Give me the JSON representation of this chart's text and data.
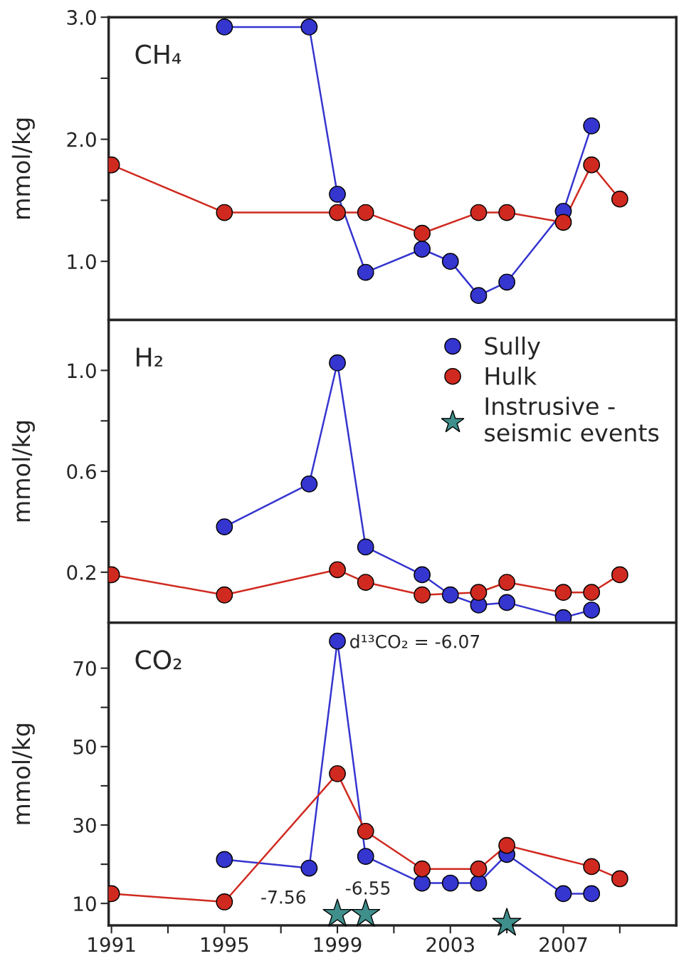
{
  "chart_data": [
    {
      "type": "line",
      "title": "CH₄",
      "ylabel": "mmol/kg",
      "xlim": [
        1990.9,
        2011
      ],
      "ylim": [
        0.52,
        3.0
      ],
      "yticks": [
        {
          "value": 1.0,
          "label": "1.0"
        },
        {
          "value": 1.5,
          "label": null
        },
        {
          "value": 2.0,
          "label": "2.0"
        },
        {
          "value": 2.5,
          "label": null
        },
        {
          "value": 3.0,
          "label": "3.0"
        }
      ],
      "tick_labels": "y",
      "grid": false,
      "marker": "circle",
      "line_style": "solid",
      "series": [
        {
          "color": "#3535d0",
          "x": [
            1995,
            1998,
            1999,
            2000,
            2002,
            2003,
            2004,
            2005,
            2007,
            2008
          ],
          "values": [
            2.92,
            2.92,
            1.55,
            0.91,
            1.1,
            1.0,
            0.72,
            0.83,
            1.41,
            2.11
          ]
        },
        {
          "color": "#d02a20",
          "x": [
            1991,
            1995,
            1999,
            2000,
            2002,
            2004,
            2005,
            2007,
            2008,
            2009
          ],
          "values": [
            1.79,
            1.4,
            1.4,
            1.4,
            1.23,
            1.4,
            1.4,
            1.32,
            1.79,
            1.51
          ]
        }
      ]
    },
    {
      "type": "line",
      "title": "H₂",
      "ylabel": "mmol/kg",
      "xlim": [
        1990.9,
        2011
      ],
      "ylim": [
        0,
        1.2
      ],
      "yticks": [
        {
          "value": 0.2,
          "label": "0.2"
        },
        {
          "value": 0.4,
          "label": null
        },
        {
          "value": 0.6,
          "label": "0.6"
        },
        {
          "value": 0.8,
          "label": null
        },
        {
          "value": 1.0,
          "label": "1.0"
        }
      ],
      "tick_labels": "y",
      "grid": false,
      "marker": "circle",
      "line_style": "solid",
      "legend": "top right",
      "series": [
        {
          "name": "Sully",
          "color": "#3535d0",
          "x": [
            1995,
            1998,
            1999,
            2000,
            2002,
            2003,
            2004,
            2005,
            2007,
            2008
          ],
          "values": [
            0.38,
            0.55,
            1.03,
            0.3,
            0.19,
            0.11,
            0.07,
            0.08,
            0.02,
            0.05
          ]
        },
        {
          "name": "Hulk",
          "color": "#d02a20",
          "x": [
            1991,
            1995,
            1999,
            2000,
            2002,
            2004,
            2005,
            2007,
            2008,
            2009
          ],
          "values": [
            0.19,
            0.11,
            0.21,
            0.16,
            0.11,
            0.12,
            0.16,
            0.12,
            0.12,
            0.19
          ]
        }
      ]
    },
    {
      "type": "line",
      "title": "CO₂",
      "ylabel": "mmol/kg",
      "xlim": [
        1990.9,
        2011
      ],
      "ylim": [
        4.4,
        81.6
      ],
      "xticks": [
        1991,
        {
          "value": 1993,
          "label": null
        },
        1995,
        {
          "value": 1997,
          "label": null
        },
        1999,
        {
          "value": 2001,
          "label": null
        },
        2003,
        {
          "value": 2005,
          "label": null
        },
        2007,
        {
          "value": 2009,
          "label": null
        }
      ],
      "yticks": [
        10,
        {
          "value": 20,
          "label": null
        },
        30,
        {
          "value": 40,
          "label": null
        },
        50,
        {
          "value": 60,
          "label": null
        },
        70
      ],
      "grid": false,
      "marker": "circle",
      "line_style": "solid",
      "annotations": [
        {
          "text": "d¹³CO₂ = -6.07",
          "x": 1999,
          "y": 76.9
        },
        "-7.56",
        "-6.55"
      ],
      "series": [
        {
          "color": "#3535d0",
          "x": [
            1995,
            1998,
            1999,
            2000,
            2002,
            2003,
            2004,
            2005,
            2007,
            2008
          ],
          "values": [
            21.2,
            19.0,
            76.9,
            22.0,
            15.2,
            15.2,
            15.2,
            22.5,
            12.5,
            12.5
          ]
        },
        {
          "color": "#d02a20",
          "x": [
            1991,
            1995,
            1999,
            2000,
            2002,
            2004,
            2005,
            2008,
            2009
          ],
          "values": [
            12.5,
            10.4,
            43.1,
            28.4,
            18.8,
            18.8,
            24.8,
            19.4,
            16.3
          ]
        },
        {
          "name": "Instrusive -\nseismic events",
          "type": "scatter",
          "marker": "star",
          "color": "#3f8f8c",
          "x": [
            1999,
            2000,
            2005
          ],
          "values": [
            7.3,
            7.3,
            5.0
          ]
        }
      ]
    }
  ]
}
